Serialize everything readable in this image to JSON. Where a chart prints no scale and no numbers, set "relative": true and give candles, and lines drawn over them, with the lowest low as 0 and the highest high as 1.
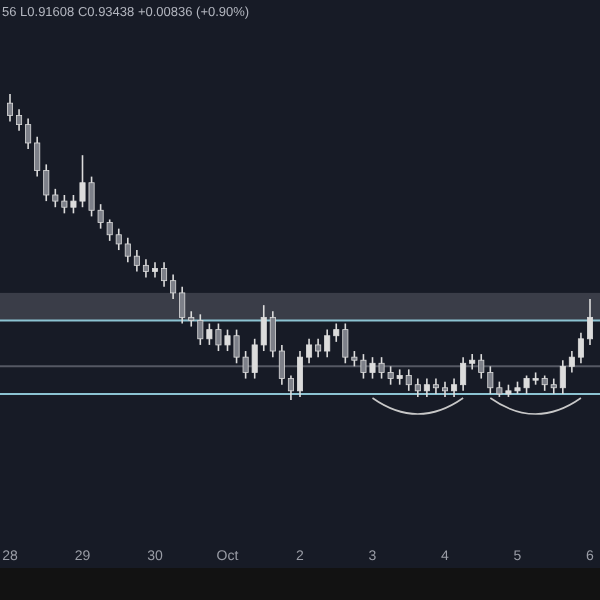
{
  "chart_data": {
    "type": "candlestick",
    "relative": true,
    "color": "#dcdcdc",
    "categories": [
      "28",
      null,
      null,
      null,
      null,
      null,
      null,
      null,
      "29",
      null,
      null,
      null,
      null,
      null,
      null,
      null,
      "30",
      null,
      null,
      null,
      null,
      null,
      null,
      null,
      "Oct",
      null,
      null,
      null,
      null,
      null,
      null,
      null,
      "2",
      null,
      null,
      null,
      null,
      null,
      null,
      null,
      "3",
      null,
      null,
      null,
      null,
      null,
      null,
      null,
      "4",
      null,
      null,
      null,
      null,
      null,
      null,
      null,
      "5",
      null,
      null,
      null,
      null,
      null,
      null,
      null,
      "6"
    ],
    "ohlc": [
      [
        0.97,
        1.0,
        0.91,
        0.93
      ],
      [
        0.93,
        0.95,
        0.88,
        0.9
      ],
      [
        0.9,
        0.92,
        0.82,
        0.84
      ],
      [
        0.84,
        0.86,
        0.73,
        0.75
      ],
      [
        0.75,
        0.77,
        0.65,
        0.67
      ],
      [
        0.67,
        0.69,
        0.63,
        0.65
      ],
      [
        0.65,
        0.67,
        0.61,
        0.63
      ],
      [
        0.63,
        0.67,
        0.61,
        0.65
      ],
      [
        0.65,
        0.8,
        0.63,
        0.71
      ],
      [
        0.71,
        0.73,
        0.6,
        0.62
      ],
      [
        0.62,
        0.64,
        0.56,
        0.58
      ],
      [
        0.58,
        0.59,
        0.52,
        0.54
      ],
      [
        0.54,
        0.56,
        0.49,
        0.51
      ],
      [
        0.51,
        0.53,
        0.45,
        0.47
      ],
      [
        0.47,
        0.49,
        0.42,
        0.44
      ],
      [
        0.44,
        0.46,
        0.4,
        0.42
      ],
      [
        0.42,
        0.45,
        0.4,
        0.43
      ],
      [
        0.43,
        0.45,
        0.37,
        0.39
      ],
      [
        0.39,
        0.41,
        0.33,
        0.35
      ],
      [
        0.35,
        0.37,
        0.25,
        0.27
      ],
      [
        0.27,
        0.29,
        0.24,
        0.26
      ],
      [
        0.26,
        0.28,
        0.18,
        0.2
      ],
      [
        0.2,
        0.25,
        0.18,
        0.23
      ],
      [
        0.23,
        0.25,
        0.16,
        0.18
      ],
      [
        0.18,
        0.23,
        0.16,
        0.21
      ],
      [
        0.21,
        0.23,
        0.12,
        0.14
      ],
      [
        0.14,
        0.16,
        0.07,
        0.09
      ],
      [
        0.09,
        0.2,
        0.07,
        0.18
      ],
      [
        0.18,
        0.31,
        0.16,
        0.27
      ],
      [
        0.27,
        0.29,
        0.14,
        0.16
      ],
      [
        0.16,
        0.18,
        0.05,
        0.07
      ],
      [
        0.07,
        0.08,
        0,
        0.03
      ],
      [
        0.03,
        0.16,
        0.01,
        0.14
      ],
      [
        0.14,
        0.2,
        0.12,
        0.18
      ],
      [
        0.18,
        0.2,
        0.14,
        0.16
      ],
      [
        0.16,
        0.23,
        0.14,
        0.21
      ],
      [
        0.21,
        0.25,
        0.19,
        0.23
      ],
      [
        0.23,
        0.25,
        0.12,
        0.14
      ],
      [
        0.14,
        0.16,
        0.11,
        0.13
      ],
      [
        0.13,
        0.15,
        0.07,
        0.09
      ],
      [
        0.09,
        0.14,
        0.07,
        0.12
      ],
      [
        0.12,
        0.14,
        0.07,
        0.09
      ],
      [
        0.09,
        0.11,
        0.05,
        0.07
      ],
      [
        0.07,
        0.1,
        0.05,
        0.08
      ],
      [
        0.08,
        0.1,
        0.03,
        0.05
      ],
      [
        0.05,
        0.07,
        0.01,
        0.03
      ],
      [
        0.03,
        0.07,
        0.01,
        0.05
      ],
      [
        0.05,
        0.07,
        0.02,
        0.04
      ],
      [
        0.04,
        0.06,
        0.01,
        0.03
      ],
      [
        0.03,
        0.07,
        0.01,
        0.05
      ],
      [
        0.05,
        0.14,
        0.03,
        0.12
      ],
      [
        0.12,
        0.15,
        0.1,
        0.13
      ],
      [
        0.13,
        0.15,
        0.07,
        0.09
      ],
      [
        0.09,
        0.11,
        0.02,
        0.04
      ],
      [
        0.04,
        0.06,
        0.01,
        0.02
      ],
      [
        0.02,
        0.05,
        0.01,
        0.03
      ],
      [
        0.03,
        0.06,
        0.02,
        0.04
      ],
      [
        0.04,
        0.08,
        0.02,
        0.07
      ],
      [
        0.07,
        0.09,
        0.05,
        0.07
      ],
      [
        0.07,
        0.08,
        0.03,
        0.05
      ],
      [
        0.05,
        0.07,
        0.02,
        0.04
      ],
      [
        0.04,
        0.13,
        0.02,
        0.11
      ],
      [
        0.11,
        0.16,
        0.09,
        0.14
      ],
      [
        0.14,
        0.22,
        0.12,
        0.2
      ],
      [
        0.2,
        0.33,
        0.18,
        0.27
      ]
    ],
    "bands": [
      {
        "axis": "y",
        "from": 0.26,
        "to": 0.35,
        "color": "#3a3d48"
      }
    ],
    "ref_lines": [
      {
        "axis": "y",
        "value": 0.26,
        "color": "#8cc3d2"
      },
      {
        "axis": "y",
        "value": 0.02,
        "color": "#8cc3d2"
      },
      {
        "axis": "y",
        "value": 0.11,
        "color": "#555863"
      }
    ],
    "annotations": [
      "56 L0.91608 C0.93438 +0.00836 (+0.90%)"
    ]
  }
}
